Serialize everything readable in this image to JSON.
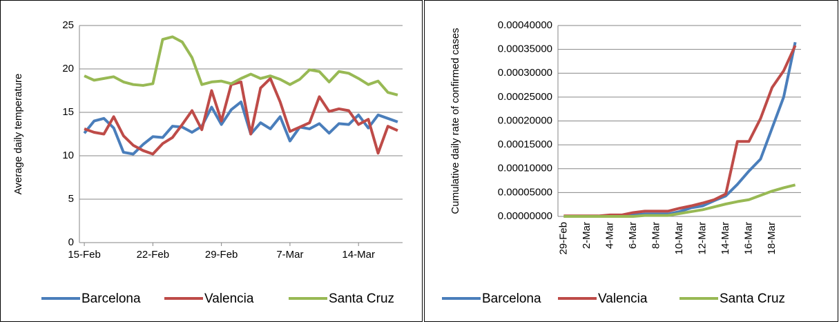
{
  "chart_data": [
    {
      "type": "line",
      "y_label": "Average daily temperature",
      "categories": [
        "15-Feb",
        null,
        null,
        null,
        null,
        null,
        null,
        "22-Feb",
        null,
        null,
        null,
        null,
        null,
        null,
        "29-Feb",
        null,
        null,
        null,
        null,
        null,
        null,
        "7-Mar",
        null,
        null,
        null,
        null,
        null,
        null,
        "14-Mar",
        null,
        null,
        null,
        null
      ],
      "series": [
        {
          "name": "Barcelona",
          "color": "#4a7ebb",
          "values": [
            12.6,
            14.0,
            14.3,
            13.2,
            10.4,
            10.2,
            11.3,
            12.2,
            12.1,
            13.4,
            13.3,
            12.7,
            13.4,
            15.6,
            13.6,
            15.3,
            16.2,
            12.5,
            13.8,
            13.1,
            14.5,
            11.7,
            13.3,
            13.1,
            13.7,
            12.6,
            13.7,
            13.6,
            14.7,
            13.2,
            14.7,
            14.3,
            13.9
          ]
        },
        {
          "name": "Valencia",
          "color": "#be4b48",
          "values": [
            13.1,
            12.7,
            12.5,
            14.5,
            12.3,
            11.2,
            10.6,
            10.2,
            11.4,
            12.1,
            13.6,
            15.2,
            13.0,
            17.5,
            14.0,
            18.2,
            18.5,
            12.5,
            17.8,
            18.9,
            16.2,
            12.8,
            13.3,
            13.8,
            16.8,
            15.1,
            15.4,
            15.2,
            13.6,
            14.2,
            10.3,
            13.4,
            12.9
          ]
        },
        {
          "name": "Santa Cruz",
          "color": "#98b954",
          "values": [
            19.2,
            18.7,
            18.9,
            19.1,
            18.5,
            18.2,
            18.1,
            18.3,
            23.4,
            23.7,
            23.1,
            21.3,
            18.2,
            18.5,
            18.6,
            18.3,
            18.9,
            19.4,
            18.9,
            19.2,
            18.8,
            18.2,
            18.8,
            19.9,
            19.7,
            18.5,
            19.7,
            19.5,
            18.9,
            18.2,
            18.6,
            17.3,
            17.0
          ]
        }
      ],
      "ylim": [
        0,
        25
      ],
      "yticks": [
        0,
        5,
        10,
        15,
        20,
        25
      ],
      "grid": true,
      "legend": "bottom"
    },
    {
      "type": "line",
      "y_label": "Cumulative daily rate of confirmed cases",
      "categories": [
        "29-Feb",
        null,
        "2-Mar",
        null,
        "4-Mar",
        null,
        "6-Mar",
        null,
        "8-Mar",
        null,
        "10-Mar",
        null,
        "12-Mar",
        null,
        "14-Mar",
        null,
        "16-Mar",
        null,
        "18-Mar",
        null,
        null
      ],
      "series": [
        {
          "name": "Barcelona",
          "color": "#4a7ebb",
          "values": [
            0,
            0,
            0,
            0,
            0,
            0,
            3e-06,
            5e-06,
            5e-06,
            5e-06,
            1e-05,
            1.8e-05,
            2.2e-05,
            3.3e-05,
            4.3e-05,
            6.7e-05,
            9.5e-05,
            0.00012,
            0.000185,
            0.00025,
            0.000365
          ]
        },
        {
          "name": "Valencia",
          "color": "#be4b48",
          "values": [
            1e-06,
            1e-06,
            1e-06,
            1e-06,
            3e-06,
            3e-06,
            8e-06,
            1.1e-05,
            1.1e-05,
            1.1e-05,
            1.7e-05,
            2.2e-05,
            2.8e-05,
            3.5e-05,
            4.7e-05,
            0.000157,
            0.000157,
            0.000205,
            0.00027,
            0.000305,
            0.000358
          ]
        },
        {
          "name": "Santa Cruz",
          "color": "#98b954",
          "values": [
            0,
            0,
            0,
            0,
            0,
            0,
            0,
            2e-06,
            2e-06,
            2e-06,
            6e-06,
            1e-05,
            1.4e-05,
            2e-05,
            2.6e-05,
            3.1e-05,
            3.5e-05,
            4.4e-05,
            5.3e-05,
            6e-05,
            6.6e-05
          ]
        }
      ],
      "ylim": [
        0,
        0.0004
      ],
      "yticks": [
        {
          "value": 0,
          "label": "0.00000000"
        },
        {
          "value": 5e-05,
          "label": "0.00005000"
        },
        {
          "value": 0.0001,
          "label": "0.00010000"
        },
        {
          "value": 0.00015,
          "label": "0.00015000"
        },
        {
          "value": 0.0002,
          "label": "0.00020000"
        },
        {
          "value": 0.00025,
          "label": "0.00025000"
        },
        {
          "value": 0.0003,
          "label": "0.00030000"
        },
        {
          "value": 0.00035,
          "label": "0.00035000"
        },
        {
          "value": 0.0004,
          "label": "0.00040000"
        }
      ],
      "grid": true,
      "legend": "bottom",
      "rotate_x_labels": true
    }
  ]
}
